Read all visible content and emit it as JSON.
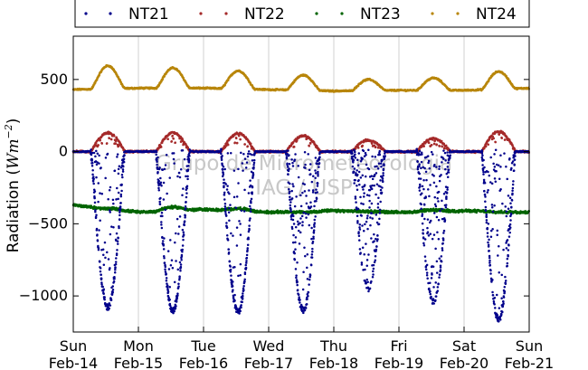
{
  "chart_data": {
    "type": "scatter",
    "title": "",
    "xlabel": "",
    "ylabel": "Radiation (",
    "ylabel_math": "Wm",
    "ylabel_exp": "−2",
    "ylabel_close": ")",
    "ylim": [
      -1250,
      800
    ],
    "yticks": [
      500,
      0,
      -500,
      -1000
    ],
    "ytick_labels": [
      "500",
      "0",
      "−500",
      "−1000"
    ],
    "xlim": [
      0,
      7
    ],
    "xtick_days": [
      "Sun",
      "Mon",
      "Tue",
      "Wed",
      "Thu",
      "Fri",
      "Sat",
      "Sun"
    ],
    "xtick_dates": [
      "Feb-14",
      "Feb-15",
      "Feb-16",
      "Feb-17",
      "Feb-18",
      "Feb-19",
      "Feb-20",
      "Feb-21"
    ],
    "grid": "vertical",
    "legend_position": "top",
    "watermark": [
      "Grupo de Micrometeorologia",
      "IAG / USP"
    ],
    "series": [
      {
        "name": "NT21",
        "color": "#00008b",
        "values_by_day": [
          {
            "night": 0,
            "min": -1080,
            "spread": 0.6
          },
          {
            "night": 0,
            "min": -1100,
            "spread": 0.7
          },
          {
            "night": 0,
            "min": -1110,
            "spread": 0.7
          },
          {
            "night": 0,
            "min": -1100,
            "spread": 0.5
          },
          {
            "night": 0,
            "min": -950,
            "spread": 0.3
          },
          {
            "night": 0,
            "min": -1040,
            "spread": 0.4
          },
          {
            "night": 0,
            "min": -1160,
            "spread": 0.6
          }
        ]
      },
      {
        "name": "NT22",
        "color": "#a52a2a",
        "values_by_day": [
          {
            "night": 0,
            "max": 130
          },
          {
            "night": 0,
            "max": 130
          },
          {
            "night": 0,
            "max": 125
          },
          {
            "night": 0,
            "max": 110
          },
          {
            "night": 0,
            "max": 80
          },
          {
            "night": 0,
            "max": 90
          },
          {
            "night": 0,
            "max": 140
          }
        ]
      },
      {
        "name": "NT23",
        "color": "#006400",
        "night_values": [
          -370,
          -420,
          -400,
          -420,
          -410,
          -420,
          -410,
          -420
        ],
        "day_values": [
          -395,
          -385,
          -395,
          -420,
          -415,
          -405,
          -420
        ]
      },
      {
        "name": "NT24",
        "color": "#b8860b",
        "night_values": [
          430,
          440,
          440,
          430,
          420,
          425,
          425,
          440
        ],
        "peak_values": [
          595,
          580,
          560,
          530,
          500,
          510,
          555
        ]
      }
    ]
  }
}
